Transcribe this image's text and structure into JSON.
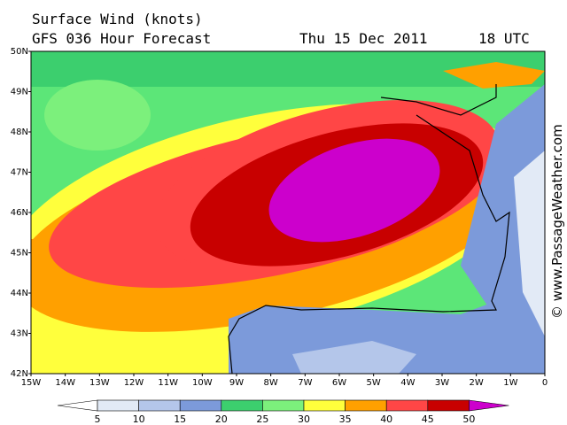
{
  "header": {
    "title": "Surface Wind (knots)",
    "model": "GFS 036 Hour Forecast",
    "date": "Thu 15 Dec 2011",
    "time": "18 UTC"
  },
  "axes": {
    "lat_labels": [
      "50N",
      "49N",
      "48N",
      "47N",
      "46N",
      "45N",
      "44N",
      "43N",
      "42N"
    ],
    "lon_labels": [
      "15W",
      "14W",
      "13W",
      "12W",
      "11W",
      "10W",
      "9W",
      "8W",
      "7W",
      "6W",
      "5W",
      "4W",
      "3W",
      "2W",
      "1W",
      "0"
    ]
  },
  "colorbar": {
    "ticks": [
      5,
      10,
      15,
      20,
      25,
      30,
      35,
      40,
      45,
      50
    ],
    "colors": [
      "#ffffff",
      "#e2eaf6",
      "#b4c6ea",
      "#7c9ada",
      "#3ccf6e",
      "#7cf07c",
      "#ffff3c",
      "#ffa000",
      "#ff4646",
      "#c80000",
      "#cc00cc"
    ]
  },
  "credit": "© www.PassageWeather.com"
}
